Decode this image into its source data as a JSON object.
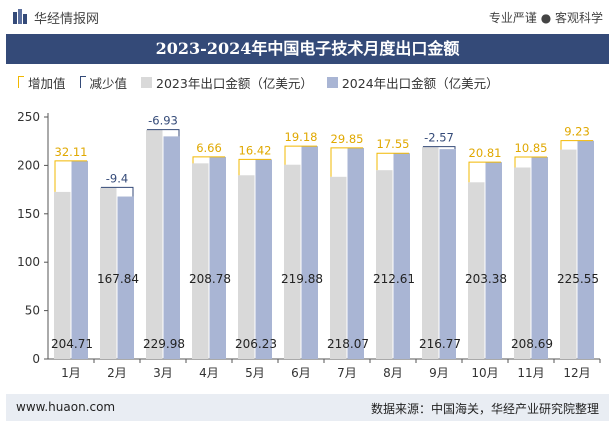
{
  "header": {
    "site_name": "华经情报网",
    "tagline": "专业严谨 ● 客观科学"
  },
  "title": "2023-2024年中国电子技术月度出口金额",
  "legend": {
    "increase": "增加值",
    "decrease": "减少值",
    "series_2023": "2023年出口金额（亿美元）",
    "series_2024": "2024年出口金额（亿美元）"
  },
  "footer": {
    "url": "www.huaon.com",
    "source": "数据来源：中国海关，华经产业研究院整理"
  },
  "colors": {
    "title_bg": "#344a78",
    "bar_2023": "#d9d9d9",
    "bar_2024": "#a9b5d4",
    "increase": "#f2b800",
    "decrease": "#344a78"
  },
  "chart_data": {
    "type": "bar",
    "categories": [
      "1月",
      "2月",
      "3月",
      "4月",
      "5月",
      "6月",
      "7月",
      "8月",
      "9月",
      "10月",
      "11月",
      "12月"
    ],
    "series": [
      {
        "name": "2023年出口金额（亿美元）",
        "values": [
          172.6,
          177.24,
          236.91,
          202.12,
          189.81,
          200.7,
          188.22,
          195.06,
          219.34,
          182.57,
          197.84,
          216.32
        ]
      },
      {
        "name": "2024年出口金额（亿美元）",
        "values": [
          204.71,
          167.84,
          229.98,
          208.78,
          206.23,
          219.88,
          218.07,
          212.61,
          216.77,
          203.38,
          208.69,
          225.55
        ]
      }
    ],
    "changes": [
      32.11,
      -9.4,
      -6.93,
      6.66,
      16.42,
      19.18,
      29.85,
      17.55,
      -2.57,
      20.81,
      10.85,
      9.23
    ],
    "change_labels": [
      "32.11",
      "-9.4",
      "-6.93",
      "6.66",
      "16.42",
      "19.18",
      "29.85",
      "17.55",
      "-2.57",
      "20.81",
      "10.85",
      "9.23"
    ],
    "value_labels": [
      "204.71",
      "167.84",
      "229.98",
      "208.78",
      "206.23",
      "219.88",
      "218.07",
      "212.61",
      "216.77",
      "203.38",
      "208.69",
      "225.55"
    ],
    "yticks": [
      0,
      50,
      100,
      150,
      200,
      250
    ],
    "ylim": [
      0,
      250
    ],
    "xlabel": "",
    "ylabel": "",
    "grid": false
  }
}
